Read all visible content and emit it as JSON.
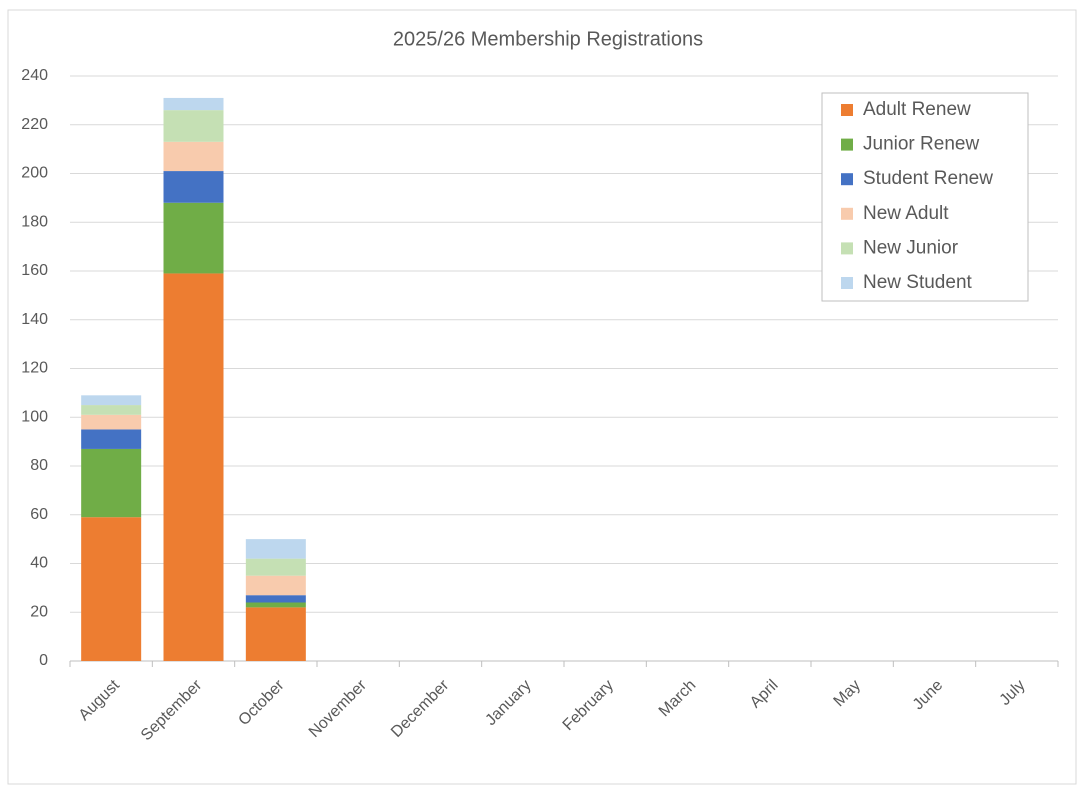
{
  "chart_data": {
    "type": "bar",
    "stacked": true,
    "title": "2025/26 Membership Registrations",
    "categories": [
      "August",
      "September",
      "October",
      "November",
      "December",
      "January",
      "February",
      "March",
      "April",
      "May",
      "June",
      "July"
    ],
    "series": [
      {
        "name": "Adult Renew",
        "color": "#ed7d31",
        "values": [
          59,
          159,
          22,
          0,
          0,
          0,
          0,
          0,
          0,
          0,
          0,
          0
        ]
      },
      {
        "name": "Junior Renew",
        "color": "#70ad47",
        "values": [
          28,
          29,
          2,
          0,
          0,
          0,
          0,
          0,
          0,
          0,
          0,
          0
        ]
      },
      {
        "name": "Student Renew",
        "color": "#4472c4",
        "values": [
          8,
          13,
          3,
          0,
          0,
          0,
          0,
          0,
          0,
          0,
          0,
          0
        ]
      },
      {
        "name": "New Adult",
        "color": "#f8cbad",
        "values": [
          6,
          12,
          8,
          0,
          0,
          0,
          0,
          0,
          0,
          0,
          0,
          0
        ]
      },
      {
        "name": "New Junior",
        "color": "#c5e0b4",
        "values": [
          4,
          13,
          7,
          0,
          0,
          0,
          0,
          0,
          0,
          0,
          0,
          0
        ]
      },
      {
        "name": "New Student",
        "color": "#bdd7ee",
        "values": [
          4,
          5,
          8,
          0,
          0,
          0,
          0,
          0,
          0,
          0,
          0,
          0
        ]
      }
    ],
    "ylim": [
      0,
      240
    ],
    "yticks": [
      0,
      20,
      40,
      60,
      80,
      100,
      120,
      140,
      160,
      180,
      200,
      220,
      240
    ],
    "grid": true,
    "legend": "upper right"
  }
}
